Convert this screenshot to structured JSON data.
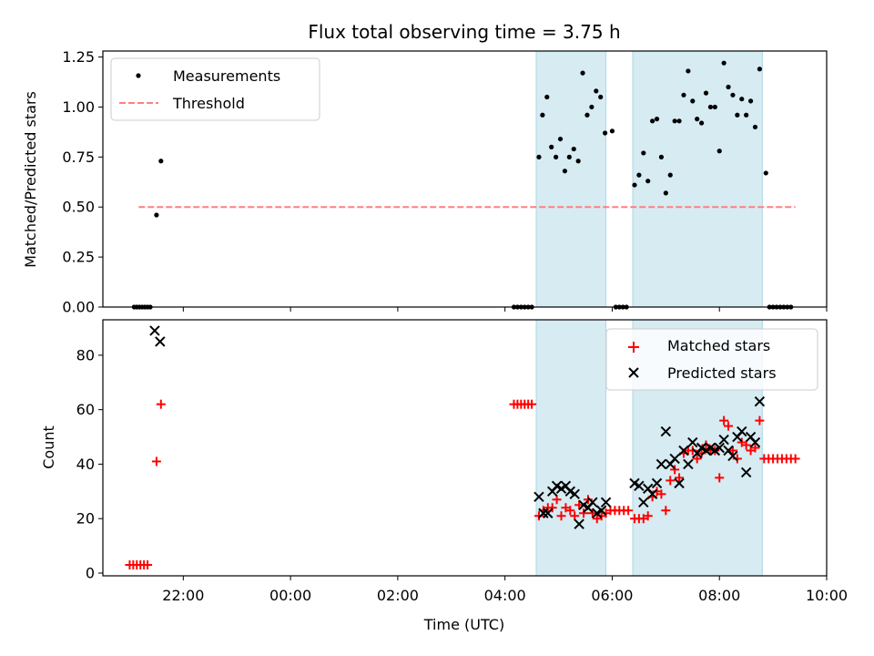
{
  "chart_data": [
    {
      "type": "scatter",
      "title": "Flux total observing time = 3.75 h",
      "ylabel": "Matched/Predicted stars",
      "xlabel": "",
      "ylim": [
        0,
        1.28
      ],
      "yticks": [
        "0.00",
        "0.25",
        "0.50",
        "0.75",
        "1.00",
        "1.25"
      ],
      "ytick_values": [
        0,
        0.25,
        0.5,
        0.75,
        1.0,
        1.25
      ],
      "legend": {
        "placement": "top-left",
        "entries": [
          "Measurements",
          "Threshold"
        ]
      },
      "threshold": {
        "name": "Threshold",
        "value": 0.5,
        "x_start": "21:10",
        "x_end": "09:25",
        "color": "#ff7f7f"
      },
      "series": [
        {
          "name": "Measurements",
          "color": "#000000",
          "x": [
            "21:05",
            "21:08",
            "21:11",
            "21:14",
            "21:17",
            "21:20",
            "21:23",
            "21:30",
            "21:35",
            "04:10",
            "04:14",
            "04:18",
            "04:22",
            "04:26",
            "04:30",
            "04:38",
            "04:42",
            "04:47",
            "04:52",
            "04:57",
            "05:02",
            "05:07",
            "05:12",
            "05:17",
            "05:22",
            "05:27",
            "05:32",
            "05:37",
            "05:42",
            "05:47",
            "05:52",
            "06:00",
            "06:04",
            "06:08",
            "06:12",
            "06:16",
            "06:25",
            "06:30",
            "06:35",
            "06:40",
            "06:45",
            "06:50",
            "06:55",
            "07:00",
            "07:05",
            "07:10",
            "07:15",
            "07:20",
            "07:25",
            "07:30",
            "07:35",
            "07:40",
            "07:45",
            "07:50",
            "07:55",
            "08:00",
            "08:05",
            "08:10",
            "08:15",
            "08:20",
            "08:25",
            "08:30",
            "08:35",
            "08:40",
            "08:45",
            "08:52",
            "08:56",
            "09:00",
            "09:04",
            "09:08",
            "09:12",
            "09:16",
            "09:20"
          ],
          "y": [
            0,
            0,
            0,
            0,
            0,
            0,
            0,
            0.46,
            0.73,
            0,
            0,
            0,
            0,
            0,
            0,
            0.75,
            0.96,
            1.05,
            0.8,
            0.75,
            0.84,
            0.68,
            0.75,
            0.79,
            0.73,
            1.17,
            0.96,
            1.0,
            1.08,
            1.05,
            0.87,
            0.88,
            0,
            0,
            0,
            0,
            0.61,
            0.66,
            0.77,
            0.63,
            0.93,
            0.94,
            0.75,
            0.57,
            0.66,
            0.93,
            0.93,
            1.06,
            1.18,
            1.03,
            0.94,
            0.92,
            1.07,
            1.0,
            1.0,
            0.78,
            1.22,
            1.1,
            1.06,
            0.96,
            1.04,
            0.96,
            1.03,
            0.9,
            1.19,
            0.67,
            0,
            0,
            0,
            0,
            0,
            0,
            0
          ]
        }
      ]
    },
    {
      "type": "scatter",
      "title": "",
      "ylabel": "Count",
      "xlabel": "Time (UTC)",
      "ylim": [
        -1,
        93
      ],
      "yticks": [
        "0",
        "20",
        "40",
        "60",
        "80"
      ],
      "ytick_values": [
        0,
        20,
        40,
        60,
        80
      ],
      "xticks": [
        "22:00",
        "00:00",
        "02:00",
        "04:00",
        "06:00",
        "08:00",
        "10:00"
      ],
      "legend": {
        "placement": "top-right",
        "entries": [
          "Matched stars",
          "Predicted stars"
        ]
      },
      "series": [
        {
          "name": "Matched stars",
          "color": "#ff0000",
          "marker": "+",
          "x": [
            "21:00",
            "21:04",
            "21:08",
            "21:12",
            "21:16",
            "21:20",
            "21:30",
            "21:35",
            "04:10",
            "04:14",
            "04:18",
            "04:22",
            "04:26",
            "04:30",
            "04:38",
            "04:43",
            "04:48",
            "04:53",
            "04:58",
            "05:03",
            "05:08",
            "05:13",
            "05:18",
            "05:23",
            "05:28",
            "05:33",
            "05:38",
            "05:43",
            "05:48",
            "05:53",
            "05:58",
            "06:03",
            "06:08",
            "06:13",
            "06:18",
            "06:25",
            "06:30",
            "06:35",
            "06:40",
            "06:45",
            "06:50",
            "06:55",
            "07:00",
            "07:05",
            "07:10",
            "07:15",
            "07:20",
            "07:25",
            "07:30",
            "07:35",
            "07:40",
            "07:45",
            "07:50",
            "07:55",
            "08:00",
            "08:05",
            "08:10",
            "08:15",
            "08:20",
            "08:25",
            "08:30",
            "08:35",
            "08:40",
            "08:45",
            "08:50",
            "08:55",
            "09:00",
            "09:05",
            "09:10",
            "09:15",
            "09:20",
            "09:25"
          ],
          "y": [
            3,
            3,
            3,
            3,
            3,
            3,
            41,
            62,
            62,
            62,
            62,
            62,
            62,
            62,
            21,
            23,
            24,
            24,
            27,
            21,
            24,
            23,
            21,
            25,
            22,
            27,
            22,
            20,
            21,
            22,
            23,
            23,
            23,
            23,
            23,
            20,
            20,
            20,
            21,
            28,
            30,
            29,
            23,
            34,
            38,
            35,
            44,
            45,
            45,
            42,
            44,
            47,
            45,
            45,
            35,
            56,
            54,
            45,
            42,
            48,
            47,
            45,
            46,
            56,
            42,
            42,
            42,
            42,
            42,
            42,
            42,
            42
          ]
        },
        {
          "name": "Predicted stars",
          "color": "#000000",
          "marker": "x",
          "x": [
            "21:28",
            "21:34",
            "04:38",
            "04:43",
            "04:48",
            "04:53",
            "04:58",
            "05:03",
            "05:08",
            "05:13",
            "05:18",
            "05:23",
            "05:28",
            "05:33",
            "05:38",
            "05:43",
            "05:48",
            "05:53",
            "06:25",
            "06:30",
            "06:35",
            "06:40",
            "06:45",
            "06:50",
            "06:55",
            "07:00",
            "07:05",
            "07:10",
            "07:15",
            "07:20",
            "07:25",
            "07:30",
            "07:35",
            "07:40",
            "07:45",
            "07:50",
            "07:55",
            "08:00",
            "08:05",
            "08:10",
            "08:15",
            "08:20",
            "08:25",
            "08:30",
            "08:35",
            "08:40",
            "08:45"
          ],
          "y": [
            89,
            85,
            28,
            22,
            22,
            30,
            32,
            31,
            32,
            30,
            29,
            18,
            25,
            24,
            26,
            22,
            23,
            26,
            33,
            32,
            26,
            31,
            29,
            33,
            40,
            52,
            40,
            42,
            33,
            45,
            40,
            48,
            44,
            46,
            45,
            46,
            45,
            46,
            49,
            45,
            43,
            50,
            52,
            37,
            50,
            48,
            63
          ]
        }
      ],
      "shared_shading": {
        "color": "#add8e6",
        "spans": [
          [
            "04:35",
            "05:53"
          ],
          [
            "06:23",
            "08:48"
          ]
        ]
      }
    }
  ]
}
